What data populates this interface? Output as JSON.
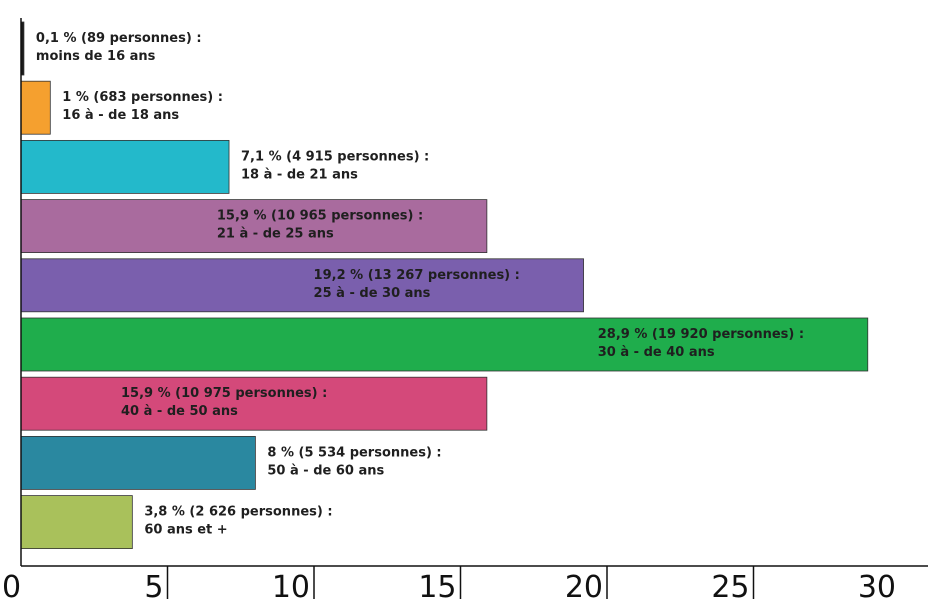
{
  "chart_data": {
    "type": "bar",
    "orientation": "horizontal",
    "title": "",
    "xlabel": "",
    "ylabel": "",
    "xlim": [
      0,
      30
    ],
    "xticks": [
      {
        "value": 0,
        "label": "0"
      },
      {
        "value": 5,
        "label": "5"
      },
      {
        "value": 10,
        "label": "10"
      },
      {
        "value": 15,
        "label": "15"
      },
      {
        "value": 20,
        "label": "20"
      },
      {
        "value": 25,
        "label": "25"
      },
      {
        "value": 30,
        "label": "30"
      }
    ],
    "grid": false,
    "legend": "none",
    "bars": [
      {
        "category": "moins de 16 ans",
        "value": 0.1,
        "count": 89,
        "label_line1": "0,1 % (89 personnes) :",
        "label_line2": "moins de 16 ans",
        "color": "#1a1a1a",
        "label_position": "outside"
      },
      {
        "category": "16 à - de 18 ans",
        "value": 1,
        "count": 683,
        "label_line1": "1 % (683 personnes) :",
        "label_line2": "16 à - de 18 ans",
        "color": "#f5a02f",
        "label_position": "outside"
      },
      {
        "category": "18 à - de 21 ans",
        "value": 7.1,
        "count": 4915,
        "label_line1": "7,1 % (4 915 personnes) :",
        "label_line2": "18 à - de 21 ans",
        "color": "#23b9cb",
        "label_position": "outside"
      },
      {
        "category": "21 à - de 25 ans",
        "value": 15.9,
        "count": 10965,
        "label_line1": "15,9 % (10 965 personnes) :",
        "label_line2": "21 à - de 25 ans",
        "color": "#a96b9e",
        "label_position": "inside-end"
      },
      {
        "category": "25 à - de 30 ans",
        "value": 19.2,
        "count": 13267,
        "label_line1": "19,2 % (13 267 personnes) :",
        "label_line2": "25 à - de 30 ans",
        "color": "#7a5fad",
        "label_position": "inside-end"
      },
      {
        "category": "30 à - de 40 ans",
        "value": 28.9,
        "count": 19920,
        "label_line1": "28,9 % (19 920 personnes) :",
        "label_line2": "30 à - de 40 ans",
        "color": "#1fad4c",
        "label_position": "inside-end"
      },
      {
        "category": "40 à - de 50 ans",
        "value": 15.9,
        "count": 10975,
        "label_line1": "15,9 % (10 975 personnes) :",
        "label_line2": "40 à - de 50 ans",
        "color": "#d4497a",
        "label_position": "inside-start"
      },
      {
        "category": "50 à - de 60 ans",
        "value": 8,
        "count": 5534,
        "label_line1": "8 % (5 534 personnes) :",
        "label_line2": "50 à - de 60 ans",
        "color": "#2a88a0",
        "label_position": "outside"
      },
      {
        "category": "60 ans et +",
        "value": 3.8,
        "count": 2626,
        "label_line1": "3,8 % (2 626 personnes) :",
        "label_line2": "60 ans et +",
        "color": "#a9c15b",
        "label_position": "outside"
      }
    ]
  }
}
